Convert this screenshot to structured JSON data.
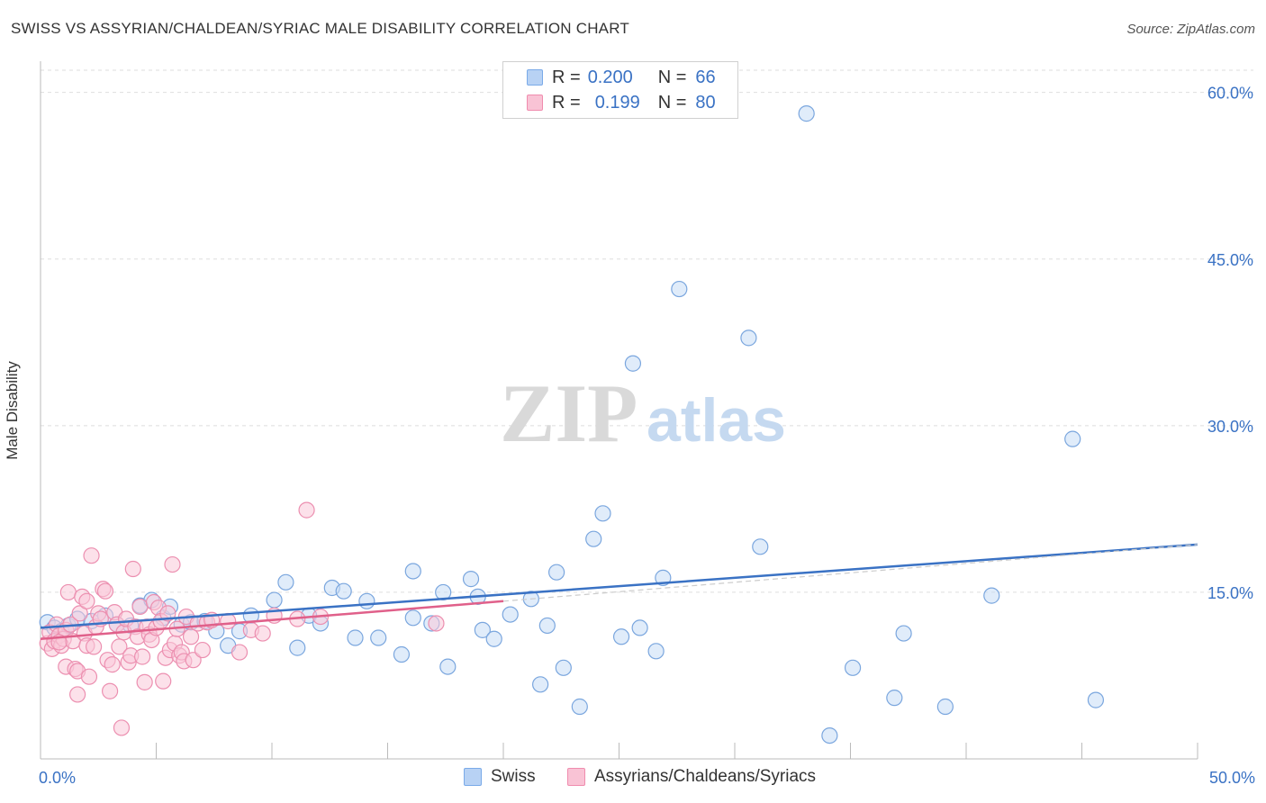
{
  "title": "SWISS VS ASSYRIAN/CHALDEAN/SYRIAC MALE DISABILITY CORRELATION CHART",
  "source": "Source: ZipAtlas.com",
  "watermark": {
    "zip": "ZIP",
    "atlas": "atlas"
  },
  "legend": {
    "r_label": "R =",
    "n_label": "N =",
    "rows": [
      {
        "r": "0.200",
        "n": "66",
        "color": "#7aaae8",
        "fill": "#b8d2f4"
      },
      {
        "r": "0.199",
        "n": "80",
        "color": "#f08cae",
        "fill": "#f9c3d5"
      }
    ]
  },
  "bottom_legend": [
    "Swiss",
    "Assyrians/Chaldeans/Syriacs"
  ],
  "chart_data": {
    "type": "scatter",
    "title": "SWISS VS ASSYRIAN/CHALDEAN/SYRIAC MALE DISABILITY CORRELATION CHART",
    "xlabel": "",
    "ylabel": "Male Disability",
    "xlim": [
      0,
      50
    ],
    "ylim": [
      0,
      62
    ],
    "x_tick_labels": [
      "0.0%",
      "50.0%"
    ],
    "y_ticks": [
      15,
      30,
      45,
      60
    ],
    "y_tick_labels": [
      "15.0%",
      "30.0%",
      "45.0%",
      "60.0%"
    ],
    "grid": true,
    "legend_position": "top-center",
    "colors": {
      "swiss": "#3a72c4",
      "swiss_fill": "#c7dcf6",
      "assyrian": "#e0608a",
      "assyrian_fill": "#f9c9d8",
      "axis_label": "#3a72c4"
    },
    "series": [
      {
        "name": "Swiss",
        "r": 0.2,
        "n": 66,
        "trend": {
          "x": [
            0,
            50
          ],
          "y": [
            11.8,
            19.3
          ]
        },
        "points": [
          [
            0.3,
            12.3
          ],
          [
            0.6,
            11.8
          ],
          [
            0.9,
            11.5
          ],
          [
            1.2,
            12.0
          ],
          [
            1.6,
            12.6
          ],
          [
            2.2,
            12.4
          ],
          [
            2.8,
            12.9
          ],
          [
            3.3,
            12.1
          ],
          [
            3.9,
            12.0
          ],
          [
            4.3,
            13.8
          ],
          [
            4.8,
            14.3
          ],
          [
            5.3,
            12.7
          ],
          [
            5.6,
            13.7
          ],
          [
            6.1,
            12.1
          ],
          [
            6.5,
            12.3
          ],
          [
            7.1,
            12.4
          ],
          [
            7.6,
            11.5
          ],
          [
            8.1,
            10.2
          ],
          [
            8.6,
            11.5
          ],
          [
            9.1,
            12.9
          ],
          [
            10.1,
            14.3
          ],
          [
            10.6,
            15.9
          ],
          [
            11.1,
            10.0
          ],
          [
            11.6,
            12.9
          ],
          [
            12.1,
            12.2
          ],
          [
            12.6,
            15.4
          ],
          [
            13.1,
            15.1
          ],
          [
            13.6,
            10.9
          ],
          [
            14.1,
            14.2
          ],
          [
            14.6,
            10.9
          ],
          [
            15.6,
            9.4
          ],
          [
            16.1,
            12.7
          ],
          [
            16.1,
            16.9
          ],
          [
            16.9,
            12.2
          ],
          [
            17.4,
            15.0
          ],
          [
            17.6,
            8.3
          ],
          [
            18.6,
            16.2
          ],
          [
            18.9,
            14.6
          ],
          [
            19.1,
            11.6
          ],
          [
            19.6,
            10.8
          ],
          [
            20.3,
            13.0
          ],
          [
            21.2,
            14.4
          ],
          [
            21.6,
            6.7
          ],
          [
            21.9,
            12.0
          ],
          [
            22.3,
            16.8
          ],
          [
            22.6,
            8.2
          ],
          [
            23.3,
            4.7
          ],
          [
            23.9,
            19.8
          ],
          [
            24.3,
            22.1
          ],
          [
            25.1,
            11.0
          ],
          [
            25.6,
            35.6
          ],
          [
            25.9,
            11.8
          ],
          [
            26.6,
            9.7
          ],
          [
            26.9,
            16.3
          ],
          [
            27.6,
            42.3
          ],
          [
            30.6,
            37.9
          ],
          [
            31.1,
            19.1
          ],
          [
            33.1,
            58.1
          ],
          [
            34.1,
            2.1
          ],
          [
            35.1,
            8.2
          ],
          [
            36.9,
            5.5
          ],
          [
            37.3,
            11.3
          ],
          [
            39.1,
            4.7
          ],
          [
            41.1,
            14.7
          ],
          [
            44.6,
            28.8
          ],
          [
            45.6,
            5.3
          ]
        ]
      },
      {
        "name": "Assyrians/Chaldeans/Syriacs",
        "r": 0.199,
        "n": 80,
        "trend": {
          "x": [
            0,
            20
          ],
          "y": [
            10.8,
            14.2
          ]
        },
        "points": [
          [
            0.3,
            10.4
          ],
          [
            0.4,
            11.4
          ],
          [
            0.5,
            9.9
          ],
          [
            0.6,
            10.6
          ],
          [
            0.7,
            12.1
          ],
          [
            0.8,
            11.1
          ],
          [
            0.9,
            10.2
          ],
          [
            1.0,
            10.8
          ],
          [
            1.1,
            11.6
          ],
          [
            1.1,
            8.3
          ],
          [
            1.2,
            15.0
          ],
          [
            1.3,
            12.1
          ],
          [
            1.4,
            10.6
          ],
          [
            1.5,
            8.1
          ],
          [
            1.6,
            7.9
          ],
          [
            1.6,
            5.8
          ],
          [
            1.7,
            13.1
          ],
          [
            1.8,
            14.6
          ],
          [
            1.9,
            11.3
          ],
          [
            2.0,
            14.2
          ],
          [
            2.0,
            10.2
          ],
          [
            2.1,
            7.4
          ],
          [
            2.2,
            18.3
          ],
          [
            2.3,
            10.1
          ],
          [
            2.4,
            11.9
          ],
          [
            2.5,
            13.1
          ],
          [
            2.6,
            12.6
          ],
          [
            2.7,
            15.3
          ],
          [
            2.8,
            15.1
          ],
          [
            2.9,
            8.9
          ],
          [
            3.0,
            6.1
          ],
          [
            3.1,
            8.5
          ],
          [
            3.2,
            13.2
          ],
          [
            3.3,
            12.1
          ],
          [
            3.4,
            10.1
          ],
          [
            3.5,
            2.8
          ],
          [
            3.6,
            11.4
          ],
          [
            3.7,
            12.6
          ],
          [
            3.8,
            8.7
          ],
          [
            3.9,
            9.3
          ],
          [
            4.0,
            17.1
          ],
          [
            4.1,
            11.9
          ],
          [
            4.2,
            11.0
          ],
          [
            4.3,
            13.7
          ],
          [
            4.4,
            9.2
          ],
          [
            4.5,
            6.9
          ],
          [
            4.6,
            11.9
          ],
          [
            4.7,
            11.2
          ],
          [
            4.8,
            10.7
          ],
          [
            4.9,
            14.1
          ],
          [
            5.0,
            11.8
          ],
          [
            5.1,
            13.6
          ],
          [
            5.2,
            12.4
          ],
          [
            5.3,
            7.0
          ],
          [
            5.4,
            9.1
          ],
          [
            5.5,
            13.1
          ],
          [
            5.6,
            9.8
          ],
          [
            5.7,
            17.5
          ],
          [
            5.8,
            10.4
          ],
          [
            5.9,
            11.7
          ],
          [
            6.0,
            9.3
          ],
          [
            6.1,
            9.6
          ],
          [
            6.2,
            8.8
          ],
          [
            6.3,
            12.8
          ],
          [
            6.5,
            11.0
          ],
          [
            6.6,
            8.9
          ],
          [
            6.8,
            12.2
          ],
          [
            7.0,
            9.8
          ],
          [
            7.2,
            12.3
          ],
          [
            7.4,
            12.5
          ],
          [
            8.1,
            12.4
          ],
          [
            8.6,
            9.6
          ],
          [
            9.1,
            11.6
          ],
          [
            9.6,
            11.3
          ],
          [
            10.1,
            12.9
          ],
          [
            11.1,
            12.6
          ],
          [
            11.5,
            22.4
          ],
          [
            12.1,
            12.8
          ],
          [
            17.1,
            12.2
          ],
          [
            0.8,
            10.5
          ]
        ]
      }
    ]
  }
}
